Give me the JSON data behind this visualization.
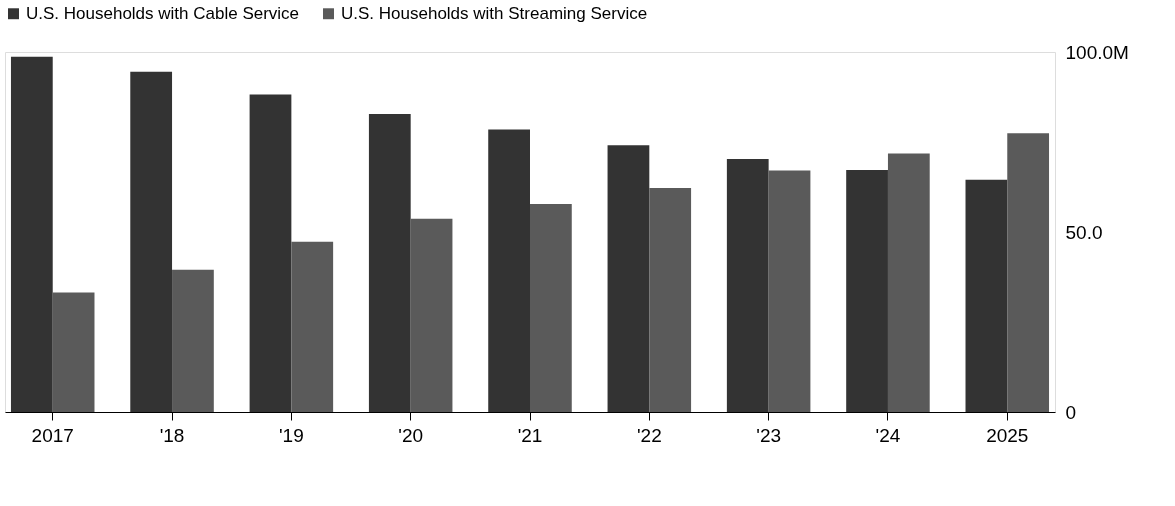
{
  "chart_data": {
    "type": "bar",
    "categories": [
      "2017",
      "'18",
      "'19",
      "'20",
      "'21",
      "'22",
      "'23",
      "'24",
      "2025"
    ],
    "series": [
      {
        "name": "U.S. Households with Cable Service",
        "color": "#333333",
        "values": [
          98.7,
          94.5,
          88.2,
          82.8,
          78.5,
          74.1,
          70.3,
          67.2,
          64.5
        ]
      },
      {
        "name": "U.S. Households with Streaming Service",
        "color": "#5a5a5a",
        "values": [
          33.2,
          39.5,
          47.3,
          53.7,
          57.8,
          62.2,
          67.1,
          71.8,
          77.4
        ]
      }
    ],
    "ylim": [
      0,
      100
    ],
    "yticks": [
      0,
      {
        "value": 50,
        "label": "50.0"
      },
      {
        "value": 100,
        "label": "100.0M"
      }
    ],
    "grid": false,
    "legend": "top left"
  }
}
